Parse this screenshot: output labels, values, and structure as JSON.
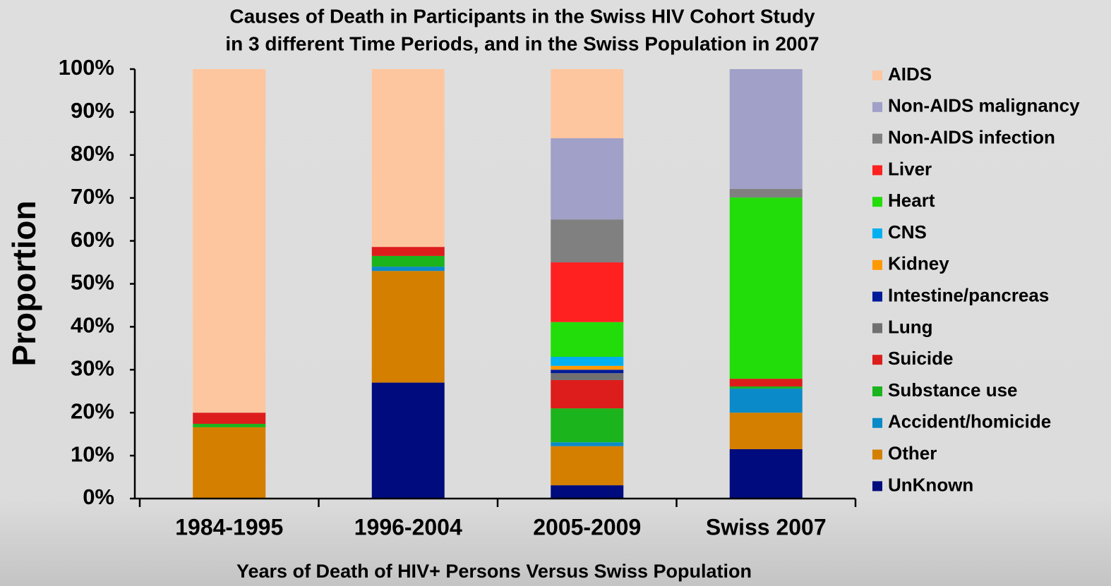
{
  "chart_data": {
    "type": "stacked_bar",
    "title": [
      "Causes of Death in Participants in the Swiss HIV Cohort Study",
      "in 3 different Time Periods, and in the Swiss Population in 2007"
    ],
    "x_label": "Years of Death of HIV+ Persons Versus Swiss Population",
    "y_label": "Proportion",
    "categories": [
      "1984-1995",
      "1996-2004",
      "2005-2009",
      "Swiss 2007"
    ],
    "ylim": [
      0,
      100
    ],
    "yticks": [
      {
        "value": 0,
        "label": "0%"
      },
      {
        "value": 10,
        "label": "10%"
      },
      {
        "value": 20,
        "label": "20%"
      },
      {
        "value": 30,
        "label": "30%"
      },
      {
        "value": 40,
        "label": "40%"
      },
      {
        "value": 50,
        "label": "50%"
      },
      {
        "value": 60,
        "label": "60%"
      },
      {
        "value": 70,
        "label": "70%"
      },
      {
        "value": 80,
        "label": "80%"
      },
      {
        "value": 90,
        "label": "90%"
      },
      {
        "value": 100,
        "label": "100%"
      }
    ],
    "grid": false,
    "legend": "right",
    "series": [
      {
        "name": "UnKnown",
        "color": "#000b7d",
        "values": [
          0,
          27,
          3.1,
          11.5
        ]
      },
      {
        "name": "Other",
        "color": "#d47f00",
        "values": [
          16.6,
          26,
          9.1,
          8.5
        ]
      },
      {
        "name": "Accident/homicide",
        "color": "#0a8ac8",
        "values": [
          0,
          1,
          0.9,
          5.6
        ]
      },
      {
        "name": "Substance use",
        "color": "#1cb41c",
        "values": [
          0.8,
          2.5,
          7.9,
          0.5
        ]
      },
      {
        "name": "Suicide",
        "color": "#dd1c1c",
        "values": [
          2.6,
          2.1,
          6.6,
          1.8
        ]
      },
      {
        "name": "Lung",
        "color": "#707070",
        "values": [
          0,
          0,
          1.6,
          0
        ]
      },
      {
        "name": "Intestine/pancreas",
        "color": "#001a99",
        "values": [
          0,
          0,
          0.8,
          0
        ]
      },
      {
        "name": "Kidney",
        "color": "#ff9900",
        "values": [
          0,
          0,
          0.9,
          0
        ]
      },
      {
        "name": "CNS",
        "color": "#00b0f0",
        "values": [
          0,
          0,
          2.1,
          0
        ]
      },
      {
        "name": "Heart",
        "color": "#22dd0a",
        "values": [
          0,
          0,
          8.1,
          42.2
        ]
      },
      {
        "name": "Liver",
        "color": "#ff2020",
        "values": [
          0,
          0,
          13.9,
          0
        ]
      },
      {
        "name": "Non-AIDS infection",
        "color": "#808080",
        "values": [
          0,
          0,
          10,
          2
        ]
      },
      {
        "name": "Non-AIDS malignancy",
        "color": "#a0a0c8",
        "values": [
          0,
          0,
          18.9,
          27.9
        ]
      },
      {
        "name": "AIDS",
        "color": "#fdc69f",
        "values": [
          80,
          41.4,
          16.1,
          0
        ]
      }
    ]
  }
}
